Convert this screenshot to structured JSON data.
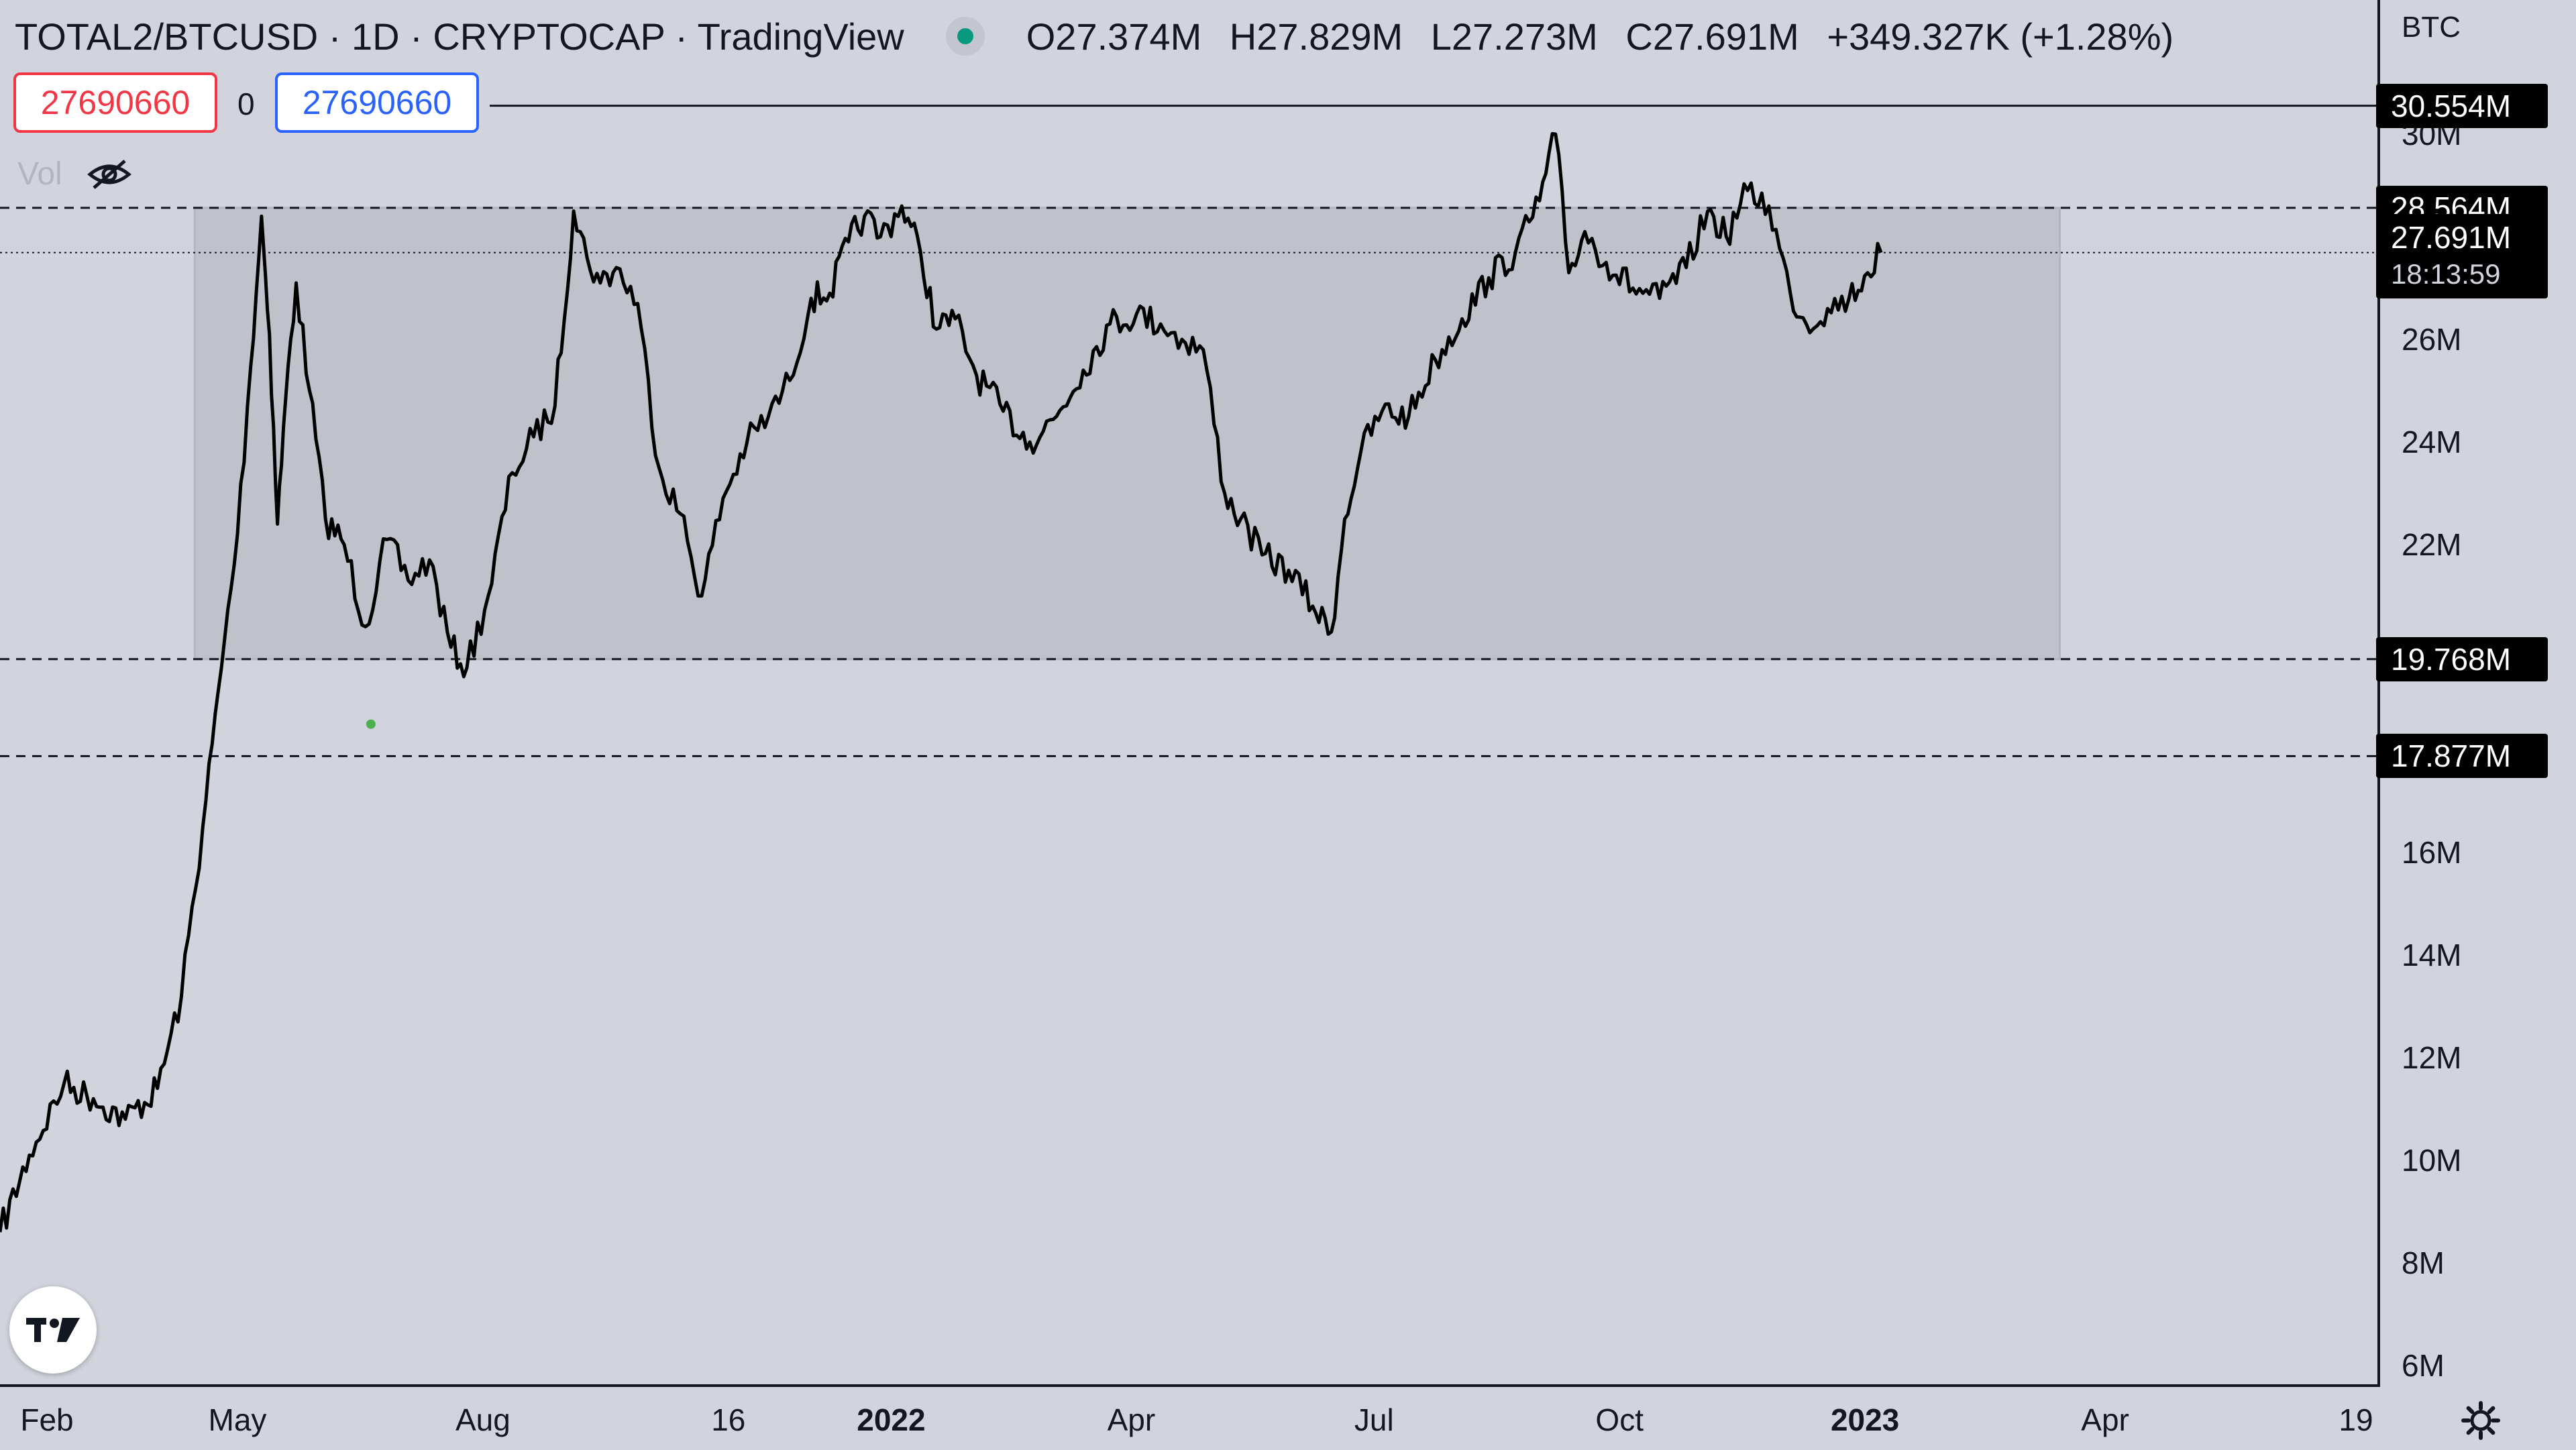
{
  "header": {
    "title": "TOTAL2/BTCUSD · 1D · CRYPTOCAP · TradingView",
    "open": "O27.374M",
    "high": "H27.829M",
    "low": "L27.273M",
    "close": "C27.691M",
    "change": "+349.327K (+1.28%)"
  },
  "order_bar": {
    "sell_value": "27690660",
    "spread": "0",
    "buy_value": "27690660"
  },
  "volume_label": "Vol",
  "icons": [
    "eye-slash-icon",
    "tradingview-logo-icon",
    "settings-gear-icon"
  ],
  "colors": {
    "background": "#d1d4dc",
    "zone": "#bfc2cb",
    "sell": "#f23645",
    "buy": "#2962ff",
    "status_dot": "#089981",
    "marker": "#4caf50"
  },
  "chart_data": {
    "type": "line",
    "y_axis_unit": "BTC",
    "y_ticks": [
      "30M",
      "26M",
      "24M",
      "22M",
      "16M",
      "14M",
      "12M",
      "10M",
      "8M",
      "6M"
    ],
    "x_ticks": [
      "Feb",
      "May",
      "Aug",
      "16",
      "2022",
      "Apr",
      "Jul",
      "Oct",
      "2023",
      "Apr",
      "19"
    ],
    "ylim": [
      6000000,
      31000000
    ],
    "xlim": [
      "2021-02-01",
      "2023-07-01"
    ],
    "grid": false,
    "horizontal_levels": [
      {
        "value": "30.554M",
        "y": 30554000,
        "style": "solid"
      },
      {
        "value": "28.564M",
        "y": 28564000,
        "style": "dashed"
      },
      {
        "value": "19.768M",
        "y": 19768000,
        "style": "dashed"
      },
      {
        "value": "17.877M",
        "y": 17877000,
        "style": "dashed"
      }
    ],
    "last_price": {
      "value": "27.691M",
      "y": 27691000,
      "countdown": "18:13:59"
    },
    "range_box": {
      "x_start": "2021-04-15",
      "x_end": "2023-03-15",
      "y_low": 19768000,
      "y_high": 28564000
    },
    "marker": {
      "x": "2021-06-20",
      "y": 18500000
    },
    "series": [
      {
        "x": [
          "2021-02-01",
          "2021-02-12",
          "2021-02-25",
          "2021-03-08",
          "2021-03-20",
          "2021-04-01",
          "2021-04-10",
          "2021-04-18",
          "2021-04-25",
          "2021-05-01",
          "2021-05-06",
          "2021-05-10",
          "2021-05-13",
          "2021-05-16",
          "2021-05-19",
          "2021-05-23",
          "2021-05-28",
          "2021-06-03",
          "2021-06-10",
          "2021-06-18",
          "2021-06-26",
          "2021-07-04",
          "2021-07-12",
          "2021-07-20",
          "2021-07-26",
          "2021-08-03",
          "2021-08-12",
          "2021-08-20",
          "2021-08-28",
          "2021-09-04",
          "2021-09-09",
          "2021-09-14",
          "2021-09-20",
          "2021-09-28",
          "2021-10-06",
          "2021-10-14",
          "2021-10-22",
          "2021-10-30",
          "2021-11-08",
          "2021-11-16",
          "2021-11-24",
          "2021-12-02",
          "2021-12-09",
          "2021-12-16",
          "2021-12-22",
          "2021-12-28",
          "2022-01-05",
          "2022-01-12",
          "2022-01-18",
          "2022-01-25",
          "2022-02-02",
          "2022-02-12",
          "2022-02-22",
          "2022-03-04",
          "2022-03-14",
          "2022-03-24",
          "2022-04-03",
          "2022-04-12",
          "2022-04-20",
          "2022-04-28",
          "2022-05-06",
          "2022-05-12",
          "2022-05-20",
          "2022-05-30",
          "2022-06-08",
          "2022-06-15",
          "2022-06-20",
          "2022-06-26",
          "2022-07-04",
          "2022-07-14",
          "2022-07-24",
          "2022-08-03",
          "2022-08-13",
          "2022-08-23",
          "2022-09-01",
          "2022-09-07",
          "2022-09-12",
          "2022-09-18",
          "2022-09-26",
          "2022-10-06",
          "2022-10-16",
          "2022-10-26",
          "2022-11-03",
          "2022-11-10",
          "2022-11-18",
          "2022-11-26",
          "2022-12-04",
          "2022-12-10",
          "2022-12-18",
          "2022-12-26",
          "2023-01-02",
          "2023-01-07"
        ],
        "y": [
          8600000,
          10100000,
          11500000,
          11200000,
          10800000,
          11400000,
          13200000,
          16500000,
          19600000,
          22200000,
          25500000,
          28400000,
          26100000,
          22400000,
          24800000,
          27100000,
          25000000,
          22500000,
          22000000,
          20400000,
          22100000,
          21300000,
          21700000,
          20000000,
          19600000,
          21000000,
          23400000,
          24100000,
          24700000,
          28500000,
          27600000,
          27100000,
          27400000,
          26700000,
          23500000,
          22600000,
          21000000,
          22900000,
          24000000,
          24500000,
          25200000,
          26800000,
          26900000,
          27900000,
          28400000,
          28000000,
          28600000,
          27700000,
          26200000,
          26400000,
          25300000,
          24600000,
          24000000,
          24500000,
          25400000,
          26300000,
          26500000,
          26300000,
          26000000,
          25800000,
          23000000,
          22500000,
          21800000,
          21500000,
          20800000,
          20300000,
          22500000,
          23800000,
          24600000,
          24500000,
          25600000,
          26400000,
          27200000,
          27700000,
          28700000,
          30000000,
          27300000,
          28100000,
          27500000,
          27000000,
          26800000,
          27400000,
          28500000,
          28000000,
          28900000,
          28600000,
          26900000,
          26300000,
          26600000,
          26800000,
          27300000,
          27691000
        ]
      }
    ]
  }
}
